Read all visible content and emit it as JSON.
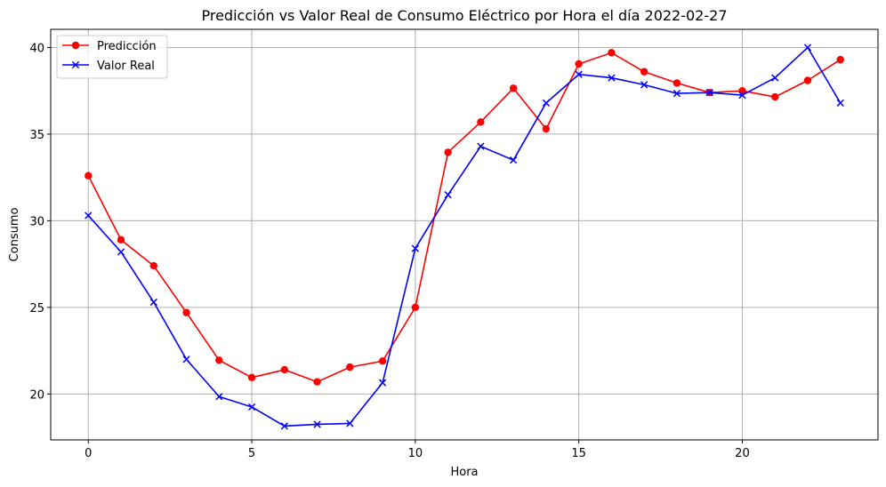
{
  "chart_data": {
    "type": "line",
    "title": "Predicción vs Valor Real de Consumo Eléctrico por Hora el día 2022-02-27",
    "xlabel": "Hora",
    "ylabel": "Consumo",
    "x": [
      0,
      1,
      2,
      3,
      4,
      5,
      6,
      7,
      8,
      9,
      10,
      11,
      12,
      13,
      14,
      15,
      16,
      17,
      18,
      19,
      20,
      21,
      22,
      23
    ],
    "xlim": [
      -1.15,
      24.15
    ],
    "ylim": [
      17.35,
      41.05
    ],
    "xticks": [
      0,
      5,
      10,
      15,
      20
    ],
    "yticks": [
      20,
      25,
      30,
      35,
      40
    ],
    "grid": true,
    "legend_position": "upper-left",
    "series": [
      {
        "name": "Predicción",
        "color": "#ff0000",
        "marker": "circle",
        "values": [
          32.6,
          28.9,
          27.4,
          24.7,
          21.95,
          20.95,
          21.4,
          20.7,
          21.55,
          21.9,
          25.0,
          33.95,
          35.7,
          37.65,
          35.3,
          39.05,
          39.7,
          38.6,
          37.95,
          37.4,
          37.5,
          37.15,
          38.1,
          39.3
        ]
      },
      {
        "name": "Valor Real",
        "color": "#0000ff",
        "marker": "x",
        "values": [
          30.3,
          28.2,
          25.3,
          22.0,
          19.85,
          19.25,
          18.15,
          18.25,
          18.3,
          20.65,
          28.4,
          31.5,
          34.3,
          33.5,
          36.8,
          38.45,
          38.25,
          37.85,
          37.35,
          37.4,
          37.25,
          38.25,
          40.0,
          36.8
        ]
      }
    ]
  }
}
